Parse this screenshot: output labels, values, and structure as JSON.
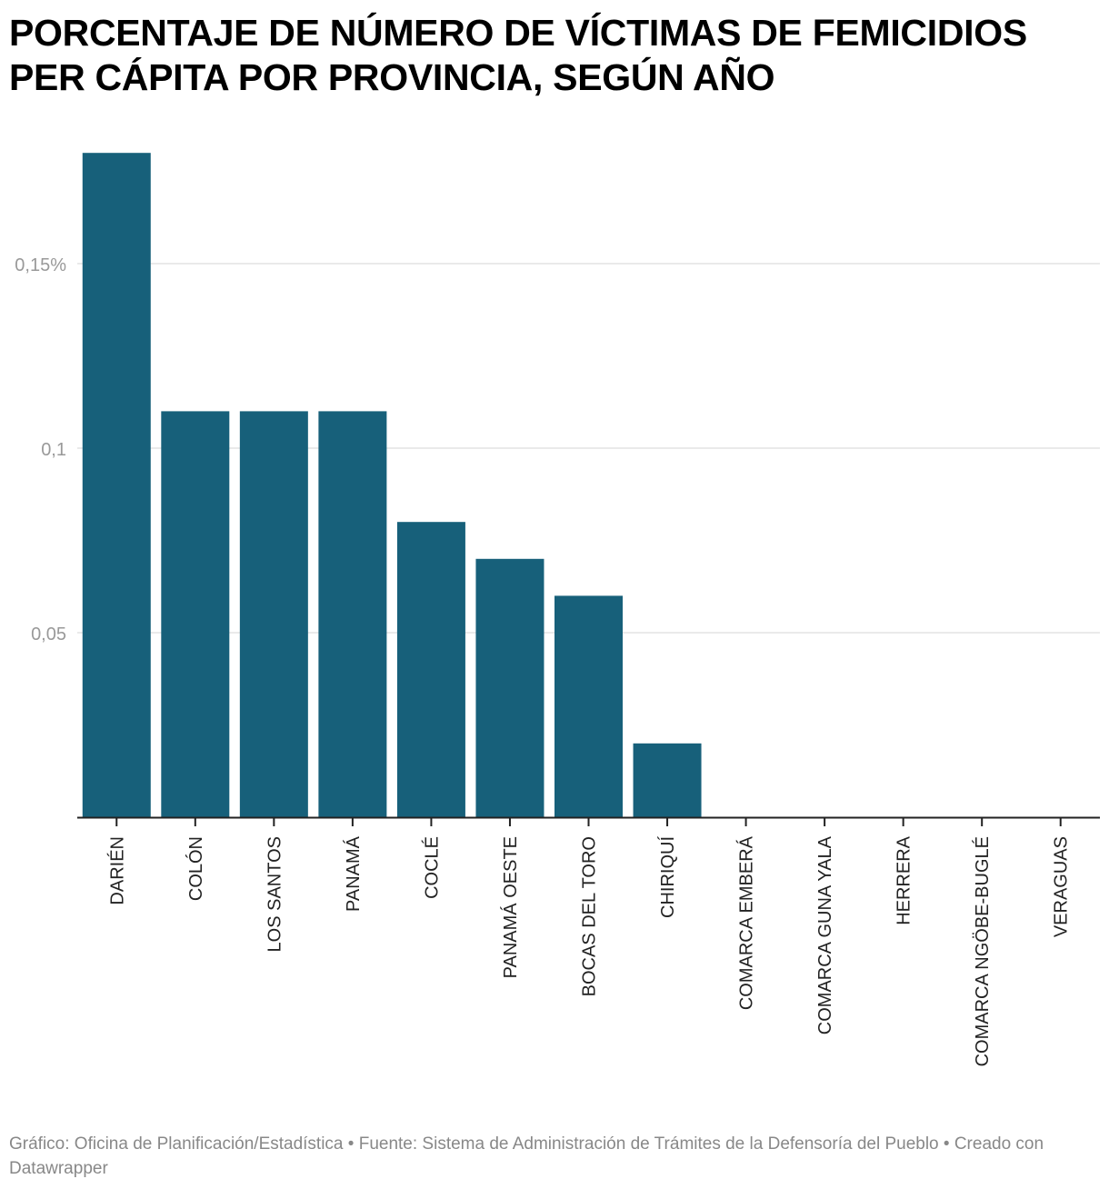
{
  "chart_data": {
    "type": "bar",
    "title": "PORCENTAJE DE NÚMERO DE VÍCTIMAS DE FEMICIDIOS PER CÁPITA POR PROVINCIA, SEGÚN AÑO",
    "categories": [
      "DARIÉN",
      "COLÓN",
      "LOS SANTOS",
      "PANAMÁ",
      "COCLÉ",
      "PANAMÁ OESTE",
      "BOCAS DEL TORO",
      "CHIRIQUÍ",
      "COMARCA EMBERÁ",
      "COMARCA GUNA YALA",
      "HERRERA",
      "COMARCA NGÖBE-BUGLÉ",
      "VERAGUAS"
    ],
    "values": [
      0.18,
      0.11,
      0.11,
      0.11,
      0.08,
      0.07,
      0.06,
      0.02,
      0,
      0,
      0,
      0,
      0
    ],
    "yticks": [
      0.05,
      0.1,
      0.15
    ],
    "ytick_labels": [
      "0,05",
      "0,1",
      "0,15%"
    ],
    "ylim": [
      0,
      0.18
    ],
    "xlabel": "",
    "ylabel": "",
    "grid": true,
    "bar_color": "#17607a"
  },
  "footer": "Gráfico: Oficina de Planificación/Estadística • Fuente: Sistema de Administración de Trámites de la Defensoría del Pueblo • Creado con Datawrapper"
}
